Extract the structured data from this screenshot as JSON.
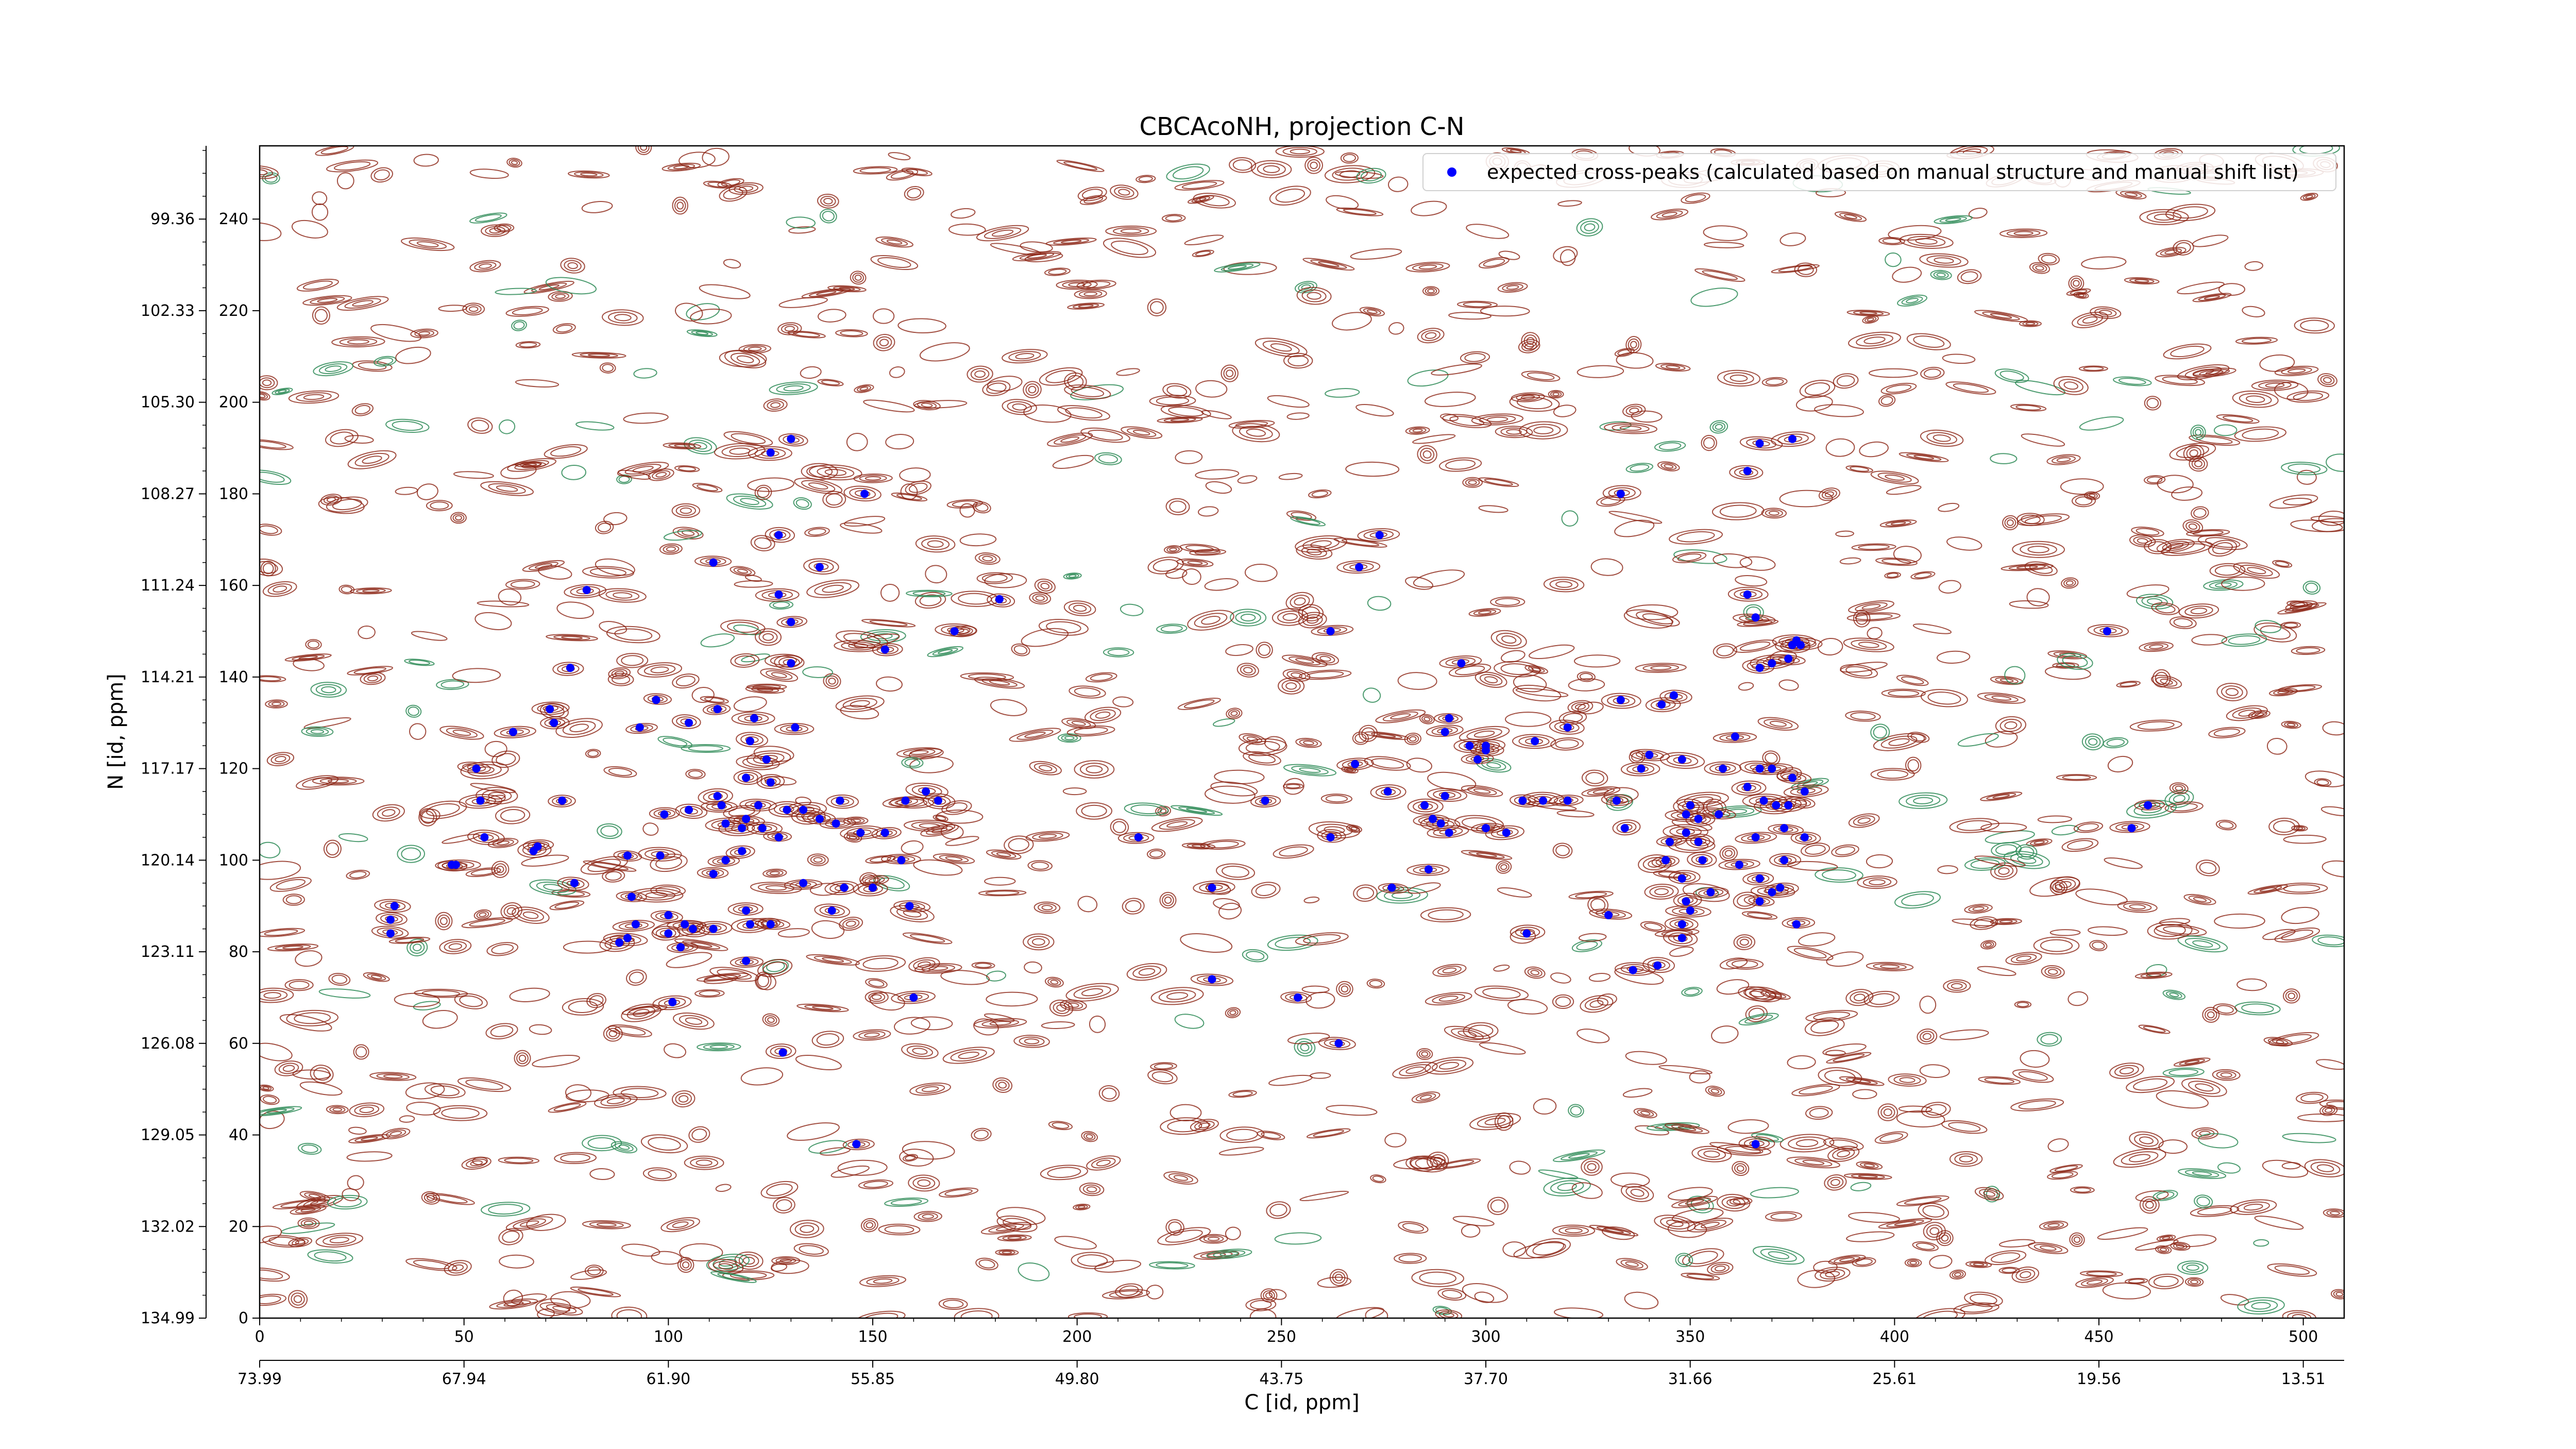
{
  "chart_data": {
    "type": "scatter",
    "title": "CBCAcoNH, projection C-N",
    "xlabel": "C [id, ppm]",
    "ylabel": "N [id, ppm]",
    "xlim": [
      0,
      510
    ],
    "ylim": [
      0,
      256
    ],
    "x_index_ticks": [
      "0",
      "50",
      "100",
      "150",
      "200",
      "250",
      "300",
      "350",
      "400",
      "450",
      "500"
    ],
    "x_ppm_ticks": [
      "73.99",
      "67.94",
      "61.90",
      "55.85",
      "49.80",
      "43.75",
      "37.70",
      "31.66",
      "25.61",
      "19.56",
      "13.51"
    ],
    "y_index_ticks": [
      "0",
      "20",
      "40",
      "60",
      "80",
      "100",
      "120",
      "140",
      "160",
      "180",
      "200",
      "220",
      "240"
    ],
    "y_ppm_ticks": [
      "134.99",
      "132.02",
      "129.05",
      "126.08",
      "123.11",
      "120.14",
      "117.17",
      "114.21",
      "111.24",
      "108.27",
      "105.30",
      "102.33",
      "99.36"
    ],
    "legend": {
      "label": "expected cross-peaks (calculated based on manual structure and manual shift list)",
      "position": "upper right"
    },
    "colors": {
      "positive_contour": "#8b2313",
      "negative_contour": "#2e8b57",
      "marker": "#0000ff"
    },
    "contour_levels": "positive (brown) and negative (green) contour levels over spectrum noise",
    "series": [
      {
        "name": "expected cross-peaks (calculated based on manual structure and manual shift list)",
        "points": [
          [
            125,
            189
          ],
          [
            130,
            192
          ],
          [
            148,
            180
          ],
          [
            127,
            171
          ],
          [
            137,
            164
          ],
          [
            111,
            165
          ],
          [
            80,
            159
          ],
          [
            127,
            158
          ],
          [
            130,
            152
          ],
          [
            153,
            146
          ],
          [
            170,
            150
          ],
          [
            181,
            157
          ],
          [
            76,
            142
          ],
          [
            130,
            143
          ],
          [
            62,
            128
          ],
          [
            72,
            130
          ],
          [
            71,
            133
          ],
          [
            93,
            129
          ],
          [
            97,
            135
          ],
          [
            105,
            130
          ],
          [
            112,
            133
          ],
          [
            121,
            131
          ],
          [
            120,
            126
          ],
          [
            124,
            122
          ],
          [
            131,
            129
          ],
          [
            119,
            118
          ],
          [
            125,
            117
          ],
          [
            122,
            112
          ],
          [
            113,
            112
          ],
          [
            112,
            114
          ],
          [
            119,
            109
          ],
          [
            118,
            107
          ],
          [
            129,
            111
          ],
          [
            133,
            111
          ],
          [
            137,
            109
          ],
          [
            141,
            108
          ],
          [
            127,
            105
          ],
          [
            123,
            107
          ],
          [
            114,
            108
          ],
          [
            105,
            111
          ],
          [
            99,
            110
          ],
          [
            74,
            113
          ],
          [
            53,
            120
          ],
          [
            54,
            113
          ],
          [
            55,
            105
          ],
          [
            67,
            102
          ],
          [
            68,
            103
          ],
          [
            90,
            101
          ],
          [
            98,
            101
          ],
          [
            111,
            97
          ],
          [
            118,
            102
          ],
          [
            114,
            100
          ],
          [
            133,
            95
          ],
          [
            143,
            94
          ],
          [
            150,
            94
          ],
          [
            157,
            100
          ],
          [
            147,
            106
          ],
          [
            153,
            106
          ],
          [
            158,
            113
          ],
          [
            163,
            115
          ],
          [
            166,
            113
          ],
          [
            142,
            113
          ],
          [
            47,
            99
          ],
          [
            48,
            99
          ],
          [
            77,
            95
          ],
          [
            91,
            92
          ],
          [
            92,
            86
          ],
          [
            100,
            88
          ],
          [
            100,
            84
          ],
          [
            104,
            86
          ],
          [
            106,
            85
          ],
          [
            111,
            85
          ],
          [
            120,
            86
          ],
          [
            119,
            89
          ],
          [
            125,
            86
          ],
          [
            140,
            89
          ],
          [
            32,
            84
          ],
          [
            32,
            87
          ],
          [
            33,
            90
          ],
          [
            88,
            82
          ],
          [
            90,
            83
          ],
          [
            103,
            81
          ],
          [
            119,
            78
          ],
          [
            159,
            90
          ],
          [
            160,
            70
          ],
          [
            101,
            69
          ],
          [
            128,
            58
          ],
          [
            146,
            38
          ],
          [
            215,
            105
          ],
          [
            233,
            94
          ],
          [
            246,
            113
          ],
          [
            233,
            74
          ],
          [
            254,
            70
          ],
          [
            262,
            105
          ],
          [
            262,
            150
          ],
          [
            264,
            60
          ],
          [
            268,
            121
          ],
          [
            269,
            164
          ],
          [
            285,
            112
          ],
          [
            290,
            114
          ],
          [
            274,
            171
          ],
          [
            276,
            115
          ],
          [
            277,
            94
          ],
          [
            286,
            98
          ],
          [
            287,
            109
          ],
          [
            289,
            108
          ],
          [
            291,
            106
          ],
          [
            290,
            128
          ],
          [
            291,
            131
          ],
          [
            294,
            143
          ],
          [
            300,
            124
          ],
          [
            296,
            125
          ],
          [
            300,
            125
          ],
          [
            298,
            122
          ],
          [
            305,
            106
          ],
          [
            309,
            113
          ],
          [
            312,
            126
          ],
          [
            320,
            129
          ],
          [
            300,
            107
          ],
          [
            320,
            113
          ],
          [
            314,
            113
          ],
          [
            310,
            84
          ],
          [
            330,
            88
          ],
          [
            333,
            180
          ],
          [
            332,
            113
          ],
          [
            334,
            107
          ],
          [
            333,
            135
          ],
          [
            340,
            123
          ],
          [
            343,
            134
          ],
          [
            346,
            136
          ],
          [
            338,
            120
          ],
          [
            350,
            112
          ],
          [
            349,
            110
          ],
          [
            349,
            106
          ],
          [
            344,
            100
          ],
          [
            345,
            104
          ],
          [
            348,
            122
          ],
          [
            352,
            109
          ],
          [
            352,
            104
          ],
          [
            353,
            100
          ],
          [
            357,
            110
          ],
          [
            358,
            120
          ],
          [
            348,
            96
          ],
          [
            355,
            93
          ],
          [
            349,
            91
          ],
          [
            350,
            89
          ],
          [
            348,
            86
          ],
          [
            348,
            83
          ],
          [
            336,
            76
          ],
          [
            342,
            77
          ],
          [
            361,
            127
          ],
          [
            364,
            158
          ],
          [
            364,
            116
          ],
          [
            367,
            120
          ],
          [
            368,
            113
          ],
          [
            370,
            120
          ],
          [
            371,
            112
          ],
          [
            374,
            112
          ],
          [
            373,
            107
          ],
          [
            373,
            100
          ],
          [
            375,
            118
          ],
          [
            366,
            105
          ],
          [
            362,
            99
          ],
          [
            367,
            96
          ],
          [
            367,
            91
          ],
          [
            370,
            93
          ],
          [
            372,
            94
          ],
          [
            376,
            86
          ],
          [
            378,
            115
          ],
          [
            378,
            105
          ],
          [
            364,
            185
          ],
          [
            367,
            191
          ],
          [
            375,
            192
          ],
          [
            366,
            153
          ],
          [
            367,
            142
          ],
          [
            370,
            143
          ],
          [
            374,
            144
          ],
          [
            375,
            147
          ],
          [
            376,
            148
          ],
          [
            377,
            147
          ],
          [
            366,
            38
          ],
          [
            452,
            150
          ],
          [
            458,
            107
          ],
          [
            462,
            112
          ]
        ]
      }
    ]
  }
}
